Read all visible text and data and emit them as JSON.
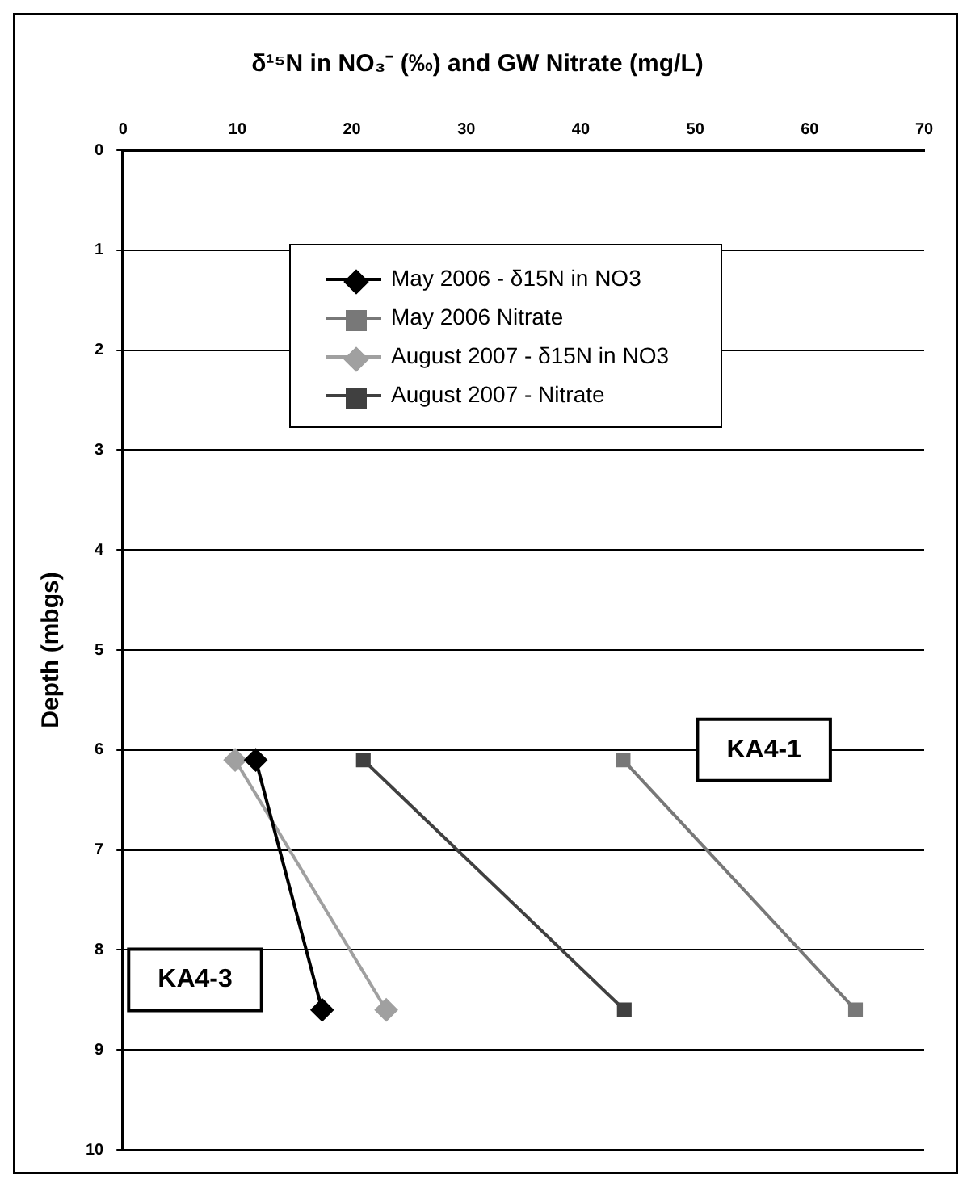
{
  "chart_data": {
    "type": "line",
    "title": "δ¹⁵N in NO₃⁻ (‰) and GW Nitrate (mg/L)",
    "ylabel": "Depth (mbgs)",
    "xlim": [
      0,
      70
    ],
    "xticks": [
      0,
      10,
      20,
      30,
      40,
      50,
      60,
      70
    ],
    "ylim": [
      10,
      0
    ],
    "yticks": [
      0,
      1,
      2,
      3,
      4,
      5,
      6,
      7,
      8,
      9,
      10
    ],
    "grid": "y",
    "legend": "top",
    "series": [
      {
        "name": "May 2006 - δ15N in NO3",
        "color": "#000000",
        "marker": "diamond",
        "x": [
          11.6,
          17.4
        ],
        "values": [
          6.1,
          8.6
        ]
      },
      {
        "name": "May 2006 Nitrate",
        "color": "#787878",
        "marker": "square",
        "x": [
          43.7,
          64.0
        ],
        "values": [
          6.1,
          8.6
        ]
      },
      {
        "name": "August 2007 - δ15N in NO3",
        "color": "#a0a0a0",
        "marker": "diamond",
        "x": [
          9.8,
          23.0
        ],
        "values": [
          6.1,
          8.6
        ]
      },
      {
        "name": "August 2007 - Nitrate",
        "color": "#404040",
        "marker": "square",
        "x": [
          21.0,
          43.8
        ],
        "values": [
          6.1,
          8.6
        ]
      }
    ],
    "annotations": [
      "KA4-1",
      "KA4-3"
    ]
  }
}
